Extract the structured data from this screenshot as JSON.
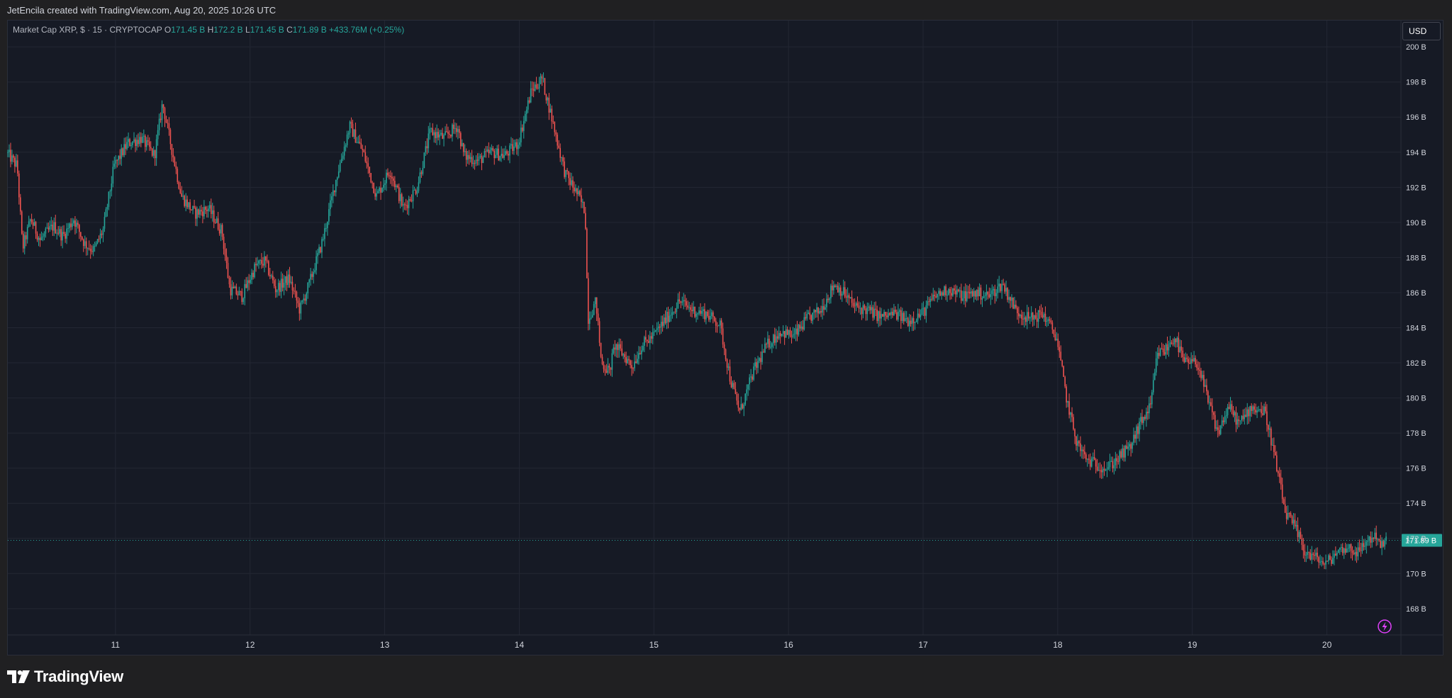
{
  "attribution": "JetEncila created with TradingView.com, Aug 20, 2025 10:26 UTC",
  "legend": {
    "symbol": "Market Cap XRP, $ · 15 · CRYPTOCAP",
    "o_label": "O",
    "o_value": "171.45 B",
    "h_label": "H",
    "h_value": "172.2 B",
    "l_label": "L",
    "l_value": "171.45 B",
    "c_label": "C",
    "c_value": "171.89 B",
    "change": "+433.76M (+0.25%)"
  },
  "currency": "USD",
  "brand": "TradingView",
  "colors": {
    "background": "#161a25",
    "grid": "#232733",
    "up": "#26a69a",
    "down": "#ef5350",
    "last_price": "#26a69a",
    "axis_text": "#d1d4dc",
    "lightning": "#e040fb"
  },
  "icons": {
    "lightning": "lightning-bolt-circle-icon",
    "logo": "tradingview-logo-icon"
  },
  "chart_data": {
    "type": "candlestick",
    "symbol": "Market Cap XRP, $ · 15 · CRYPTOCAP",
    "interval": "15",
    "currency": "USD",
    "unit": "B",
    "ylim": [
      166.5,
      201.5
    ],
    "y_ticks": [
      168,
      170,
      172,
      174,
      176,
      178,
      180,
      182,
      184,
      186,
      188,
      190,
      192,
      194,
      196,
      198,
      200
    ],
    "y_tick_labels": [
      "168 B",
      "170 B",
      "172 B",
      "174 B",
      "176 B",
      "178 B",
      "180 B",
      "182 B",
      "184 B",
      "186 B",
      "188 B",
      "190 B",
      "192 B",
      "194 B",
      "196 B",
      "198 B",
      "200 B"
    ],
    "x_range": [
      10.2,
      20.55
    ],
    "x_ticks": [
      11,
      12,
      13,
      14,
      15,
      16,
      17,
      18,
      19,
      20
    ],
    "x_tick_labels": [
      "11",
      "12",
      "13",
      "14",
      "15",
      "16",
      "17",
      "18",
      "19",
      "20"
    ],
    "last_price": 171.89,
    "last_price_label": "171.89 B",
    "grid": true,
    "close_path": [
      [
        10.2,
        194.0
      ],
      [
        10.28,
        193.2
      ],
      [
        10.32,
        188.5
      ],
      [
        10.38,
        190.2
      ],
      [
        10.45,
        189.0
      ],
      [
        10.55,
        189.8
      ],
      [
        10.62,
        189.2
      ],
      [
        10.7,
        190.2
      ],
      [
        10.78,
        188.8
      ],
      [
        10.85,
        188.4
      ],
      [
        10.92,
        189.6
      ],
      [
        11.0,
        193.2
      ],
      [
        11.1,
        194.5
      ],
      [
        11.2,
        194.8
      ],
      [
        11.3,
        193.8
      ],
      [
        11.36,
        196.8
      ],
      [
        11.42,
        194.5
      ],
      [
        11.5,
        191.5
      ],
      [
        11.6,
        190.5
      ],
      [
        11.7,
        190.8
      ],
      [
        11.8,
        189.5
      ],
      [
        11.86,
        186.2
      ],
      [
        11.95,
        185.8
      ],
      [
        12.05,
        187.5
      ],
      [
        12.12,
        187.8
      ],
      [
        12.2,
        186.2
      ],
      [
        12.3,
        186.8
      ],
      [
        12.38,
        185.0
      ],
      [
        12.45,
        186.5
      ],
      [
        12.55,
        189.0
      ],
      [
        12.65,
        192.5
      ],
      [
        12.75,
        195.5
      ],
      [
        12.85,
        194.0
      ],
      [
        12.95,
        191.5
      ],
      [
        13.05,
        193.0
      ],
      [
        13.15,
        190.8
      ],
      [
        13.25,
        192.0
      ],
      [
        13.35,
        195.2
      ],
      [
        13.45,
        194.8
      ],
      [
        13.55,
        195.5
      ],
      [
        13.6,
        193.8
      ],
      [
        13.7,
        193.5
      ],
      [
        13.8,
        194.0
      ],
      [
        13.9,
        193.8
      ],
      [
        14.0,
        194.5
      ],
      [
        14.1,
        197.5
      ],
      [
        14.18,
        198.2
      ],
      [
        14.25,
        196.0
      ],
      [
        14.35,
        192.8
      ],
      [
        14.45,
        191.5
      ],
      [
        14.5,
        190.6
      ],
      [
        14.52,
        184.5
      ],
      [
        14.58,
        185.5
      ],
      [
        14.62,
        182.0
      ],
      [
        14.68,
        181.5
      ],
      [
        14.72,
        183.0
      ],
      [
        14.78,
        182.5
      ],
      [
        14.85,
        181.8
      ],
      [
        14.92,
        183.0
      ],
      [
        15.0,
        183.5
      ],
      [
        15.1,
        184.5
      ],
      [
        15.2,
        185.5
      ],
      [
        15.3,
        185.0
      ],
      [
        15.4,
        184.8
      ],
      [
        15.5,
        184.2
      ],
      [
        15.58,
        181.0
      ],
      [
        15.65,
        179.2
      ],
      [
        15.75,
        181.5
      ],
      [
        15.85,
        183.0
      ],
      [
        15.95,
        183.8
      ],
      [
        16.05,
        183.5
      ],
      [
        16.15,
        184.5
      ],
      [
        16.25,
        185.0
      ],
      [
        16.35,
        186.5
      ],
      [
        16.42,
        186.0
      ],
      [
        16.5,
        185.2
      ],
      [
        16.6,
        185.0
      ],
      [
        16.7,
        184.6
      ],
      [
        16.8,
        184.8
      ],
      [
        16.9,
        184.4
      ],
      [
        17.0,
        184.8
      ],
      [
        17.1,
        185.8
      ],
      [
        17.2,
        186.2
      ],
      [
        17.3,
        185.8
      ],
      [
        17.4,
        186.0
      ],
      [
        17.5,
        185.8
      ],
      [
        17.6,
        186.5
      ],
      [
        17.7,
        185.0
      ],
      [
        17.8,
        184.5
      ],
      [
        17.9,
        184.8
      ],
      [
        18.0,
        183.5
      ],
      [
        18.08,
        179.8
      ],
      [
        18.15,
        177.5
      ],
      [
        18.22,
        176.5
      ],
      [
        18.3,
        176.2
      ],
      [
        18.38,
        176.0
      ],
      [
        18.45,
        176.5
      ],
      [
        18.55,
        177.2
      ],
      [
        18.62,
        178.5
      ],
      [
        18.7,
        179.5
      ],
      [
        18.75,
        182.5
      ],
      [
        18.82,
        182.8
      ],
      [
        18.88,
        183.5
      ],
      [
        18.95,
        182.0
      ],
      [
        19.05,
        182.0
      ],
      [
        19.12,
        180.0
      ],
      [
        19.2,
        178.0
      ],
      [
        19.28,
        179.5
      ],
      [
        19.36,
        178.5
      ],
      [
        19.45,
        179.5
      ],
      [
        19.55,
        179.2
      ],
      [
        19.6,
        177.5
      ],
      [
        19.65,
        175.5
      ],
      [
        19.7,
        173.5
      ],
      [
        19.78,
        172.5
      ],
      [
        19.85,
        171.2
      ],
      [
        19.95,
        170.8
      ],
      [
        20.0,
        170.5
      ],
      [
        20.08,
        171.2
      ],
      [
        20.15,
        171.5
      ],
      [
        20.25,
        171.2
      ],
      [
        20.3,
        171.8
      ],
      [
        20.38,
        172.2
      ],
      [
        20.42,
        171.5
      ],
      [
        20.45,
        171.9
      ]
    ]
  }
}
